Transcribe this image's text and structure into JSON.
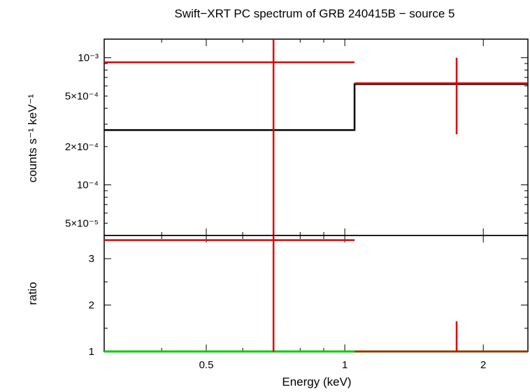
{
  "chart_data": [
    {
      "type": "line",
      "panel": "spectrum",
      "title": "Swift−XRT PC spectrum of GRB 240415B − source 5",
      "ylabel": "counts s⁻¹ keV⁻¹",
      "yscale": "log",
      "xscale": "log",
      "xlim": [
        0.3,
        2.5
      ],
      "ylim": [
        4e-05,
        0.0014
      ],
      "ytick_labels": [
        "10⁻³",
        "5×10⁻⁴",
        "2×10⁻⁴",
        "10⁻⁴",
        "5×10⁻⁵"
      ],
      "ytick_values": [
        0.001,
        0.0005,
        0.0002,
        0.0001,
        5e-05
      ],
      "data": {
        "color": "#e00000",
        "points": [
          {
            "x": 0.7,
            "xlo": 0.3,
            "xhi": 1.05,
            "y": 0.00092,
            "ylo": 4e-05,
            "yhi": 0.0014
          },
          {
            "x": 1.75,
            "xlo": 1.05,
            "xhi": 2.5,
            "y": 0.00063,
            "ylo": 0.00025,
            "yhi": 0.001
          }
        ]
      },
      "model": {
        "color": "#000000",
        "steps": [
          {
            "xlo": 0.3,
            "xhi": 1.05,
            "y": 0.00027
          },
          {
            "xlo": 1.05,
            "xhi": 2.5,
            "y": 0.00062
          }
        ]
      }
    },
    {
      "type": "line",
      "panel": "ratio",
      "xlabel": "Energy (keV)",
      "ylabel": "ratio",
      "xscale": "log",
      "xlim": [
        0.3,
        2.5
      ],
      "ylim": [
        1,
        3.5
      ],
      "xtick_labels": [
        "0.5",
        "1",
        "2"
      ],
      "xtick_values": [
        0.5,
        1,
        2
      ],
      "ytick_labels": [
        "1",
        "2",
        "3"
      ],
      "ytick_values": [
        1,
        2,
        3
      ],
      "data": {
        "color": "#e00000",
        "points": [
          {
            "x": 0.7,
            "xlo": 0.3,
            "xhi": 1.05,
            "y": 3.4,
            "ylo": 1.0,
            "yhi": 3.5
          },
          {
            "x": 1.75,
            "xlo": 1.05,
            "xhi": 2.5,
            "y": 1.0,
            "ylo": 1.0,
            "yhi": 1.65
          }
        ]
      },
      "reference_line": {
        "y": 1,
        "color": "#00cc00"
      }
    }
  ]
}
